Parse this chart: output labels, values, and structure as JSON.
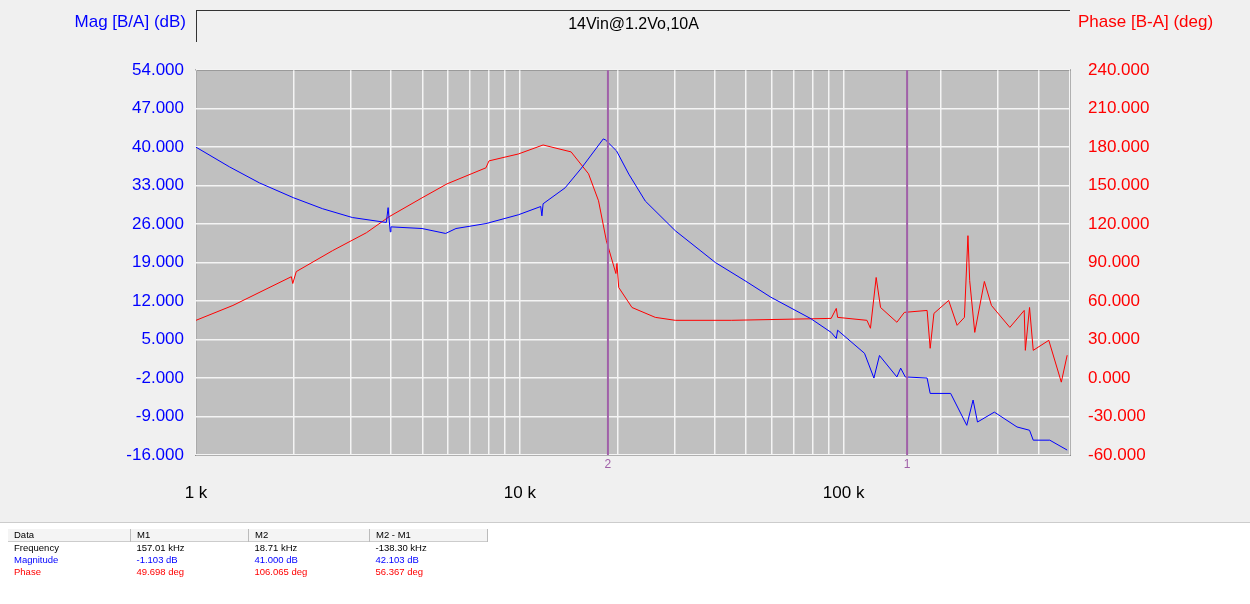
{
  "chart_data": {
    "type": "line",
    "title": "14Vin@1.2Vo,10A",
    "ylabel": "Mag [B/A] (dB)",
    "y2label": "Phase [B-A] (deg)",
    "log": "x",
    "grid": true,
    "legend": false,
    "marker": "none",
    "line_style": "solid",
    "xlim": [
      1000,
      500000
    ],
    "xticks": [
      {
        "value": 1000,
        "label": "1 k"
      },
      {
        "value": 2000,
        "label": null
      },
      {
        "value": 3000,
        "label": null
      },
      {
        "value": 4000,
        "label": null
      },
      {
        "value": 5000,
        "label": null
      },
      {
        "value": 6000,
        "label": null
      },
      {
        "value": 7000,
        "label": null
      },
      {
        "value": 8000,
        "label": null
      },
      {
        "value": 9000,
        "label": null
      },
      {
        "value": 10000,
        "label": "10 k"
      },
      {
        "value": 20000,
        "label": null
      },
      {
        "value": 30000,
        "label": null
      },
      {
        "value": 40000,
        "label": null
      },
      {
        "value": 50000,
        "label": null
      },
      {
        "value": 60000,
        "label": null
      },
      {
        "value": 70000,
        "label": null
      },
      {
        "value": 80000,
        "label": null
      },
      {
        "value": 90000,
        "label": null
      },
      {
        "value": 100000,
        "label": "100 k"
      },
      {
        "value": 200000,
        "label": null
      },
      {
        "value": 300000,
        "label": null
      },
      {
        "value": 400000,
        "label": null
      },
      {
        "value": 500000,
        "label": null
      }
    ],
    "ylim": [
      -16,
      54
    ],
    "yticks": [
      {
        "value": 54,
        "label": "54.000"
      },
      {
        "value": 47,
        "label": "47.000"
      },
      {
        "value": 40,
        "label": "40.000"
      },
      {
        "value": 33,
        "label": "33.000"
      },
      {
        "value": 26,
        "label": "26.000"
      },
      {
        "value": 19,
        "label": "19.000"
      },
      {
        "value": 12,
        "label": "12.000"
      },
      {
        "value": 5,
        "label": "5.000"
      },
      {
        "value": -2,
        "label": "-2.000"
      },
      {
        "value": -9,
        "label": "-9.000"
      },
      {
        "value": -16,
        "label": "-16.000"
      }
    ],
    "y2lim": [
      -60,
      240
    ],
    "y2ticks": [
      {
        "value": 240,
        "label": "240.000"
      },
      {
        "value": 210,
        "label": "210.000"
      },
      {
        "value": 180,
        "label": "180.000"
      },
      {
        "value": 150,
        "label": "150.000"
      },
      {
        "value": 120,
        "label": "120.000"
      },
      {
        "value": 90,
        "label": "90.000"
      },
      {
        "value": 60,
        "label": "60.000"
      },
      {
        "value": 30,
        "label": "30.000"
      },
      {
        "value": 0,
        "label": "0.000"
      },
      {
        "value": -30,
        "label": "-30.000"
      },
      {
        "value": -60,
        "label": "-60.000"
      }
    ],
    "series": [
      {
        "color": "#0000ff",
        "x": [
          1000,
          1270,
          1570,
          2000,
          2460,
          3040,
          3870,
          3920,
          3980,
          4000,
          4990,
          5900,
          6350,
          7860,
          9900,
          11600,
          11700,
          11800,
          13800,
          15500,
          18100,
          18400,
          19900,
          21700,
          24400,
          30200,
          40200,
          49600,
          59600,
          79200,
          91500,
          94900,
          95800,
          116000,
          124000,
          129000,
          146000,
          150000,
          155000,
          181000,
          185000,
          214000,
          240000,
          251000,
          259000,
          292000,
          343000,
          375000,
          385000,
          433000,
          490000
        ],
        "values": [
          40.0,
          36.4,
          33.5,
          30.8,
          28.8,
          27.2,
          26.3,
          29.0,
          24.6,
          25.5,
          25.2,
          24.3,
          25.2,
          26.1,
          27.7,
          29.2,
          27.5,
          29.7,
          32.6,
          36.2,
          41.5,
          41.3,
          39.3,
          35.1,
          30.2,
          24.8,
          19.0,
          15.7,
          12.7,
          8.8,
          6.3,
          5.2,
          6.7,
          2.5,
          -2.0,
          2.1,
          -1.8,
          -0.2,
          -1.8,
          -2.0,
          -4.8,
          -4.8,
          -10.6,
          -6.0,
          -10.0,
          -8.2,
          -10.9,
          -11.5,
          -13.3,
          -13.3,
          -15.1
        ]
      },
      {
        "color": "#ff0000",
        "axis": "y2",
        "x": [
          1000,
          1300,
          1970,
          1990,
          2040,
          2640,
          3360,
          3950,
          4990,
          5960,
          7860,
          8030,
          9900,
          11800,
          14400,
          16300,
          17500,
          18500,
          19800,
          19950,
          20200,
          22200,
          26200,
          30200,
          45000,
          91500,
          94900,
          95800,
          118000,
          121000,
          126000,
          130000,
          146000,
          154000,
          181000,
          185000,
          190000,
          211000,
          224000,
          236000,
          242000,
          245000,
          254000,
          272000,
          286000,
          326000,
          361000,
          364000,
          375000,
          385000,
          430000,
          470000,
          490000
        ],
        "values": [
          45,
          56.6,
          79,
          73.7,
          83,
          99.3,
          113.3,
          125.8,
          140.5,
          151.4,
          163.9,
          169.3,
          174.7,
          181.7,
          176.3,
          159.2,
          138.2,
          107.1,
          81.5,
          89.3,
          70.6,
          55,
          47.3,
          45,
          45,
          46.5,
          54.3,
          47.3,
          45,
          38.8,
          78.4,
          55,
          43.5,
          51.2,
          52.7,
          23.2,
          50.4,
          60.5,
          41.1,
          47.3,
          111,
          76,
          35.6,
          75.3,
          56.6,
          39.5,
          52.7,
          21.6,
          55,
          21.6,
          29.4,
          -3.2,
          17.8
        ]
      }
    ],
    "ref_lines": [
      {
        "axis": "x",
        "value": 18710,
        "color": "#a060a8"
      },
      {
        "axis": "x",
        "value": 157010,
        "color": "#a060a8"
      }
    ],
    "annotations": [
      "2",
      "1",
      "Data",
      "M1",
      "M2",
      "M2 - M1",
      "Frequency",
      "157.01 kHz",
      "18.71 kHz",
      "-138.30 kHz",
      "Magnitude",
      "-1.103 dB",
      "41.000 dB",
      "42.103 dB",
      "Phase",
      "49.698 deg",
      "106.065 deg",
      "56.367 deg"
    ]
  }
}
